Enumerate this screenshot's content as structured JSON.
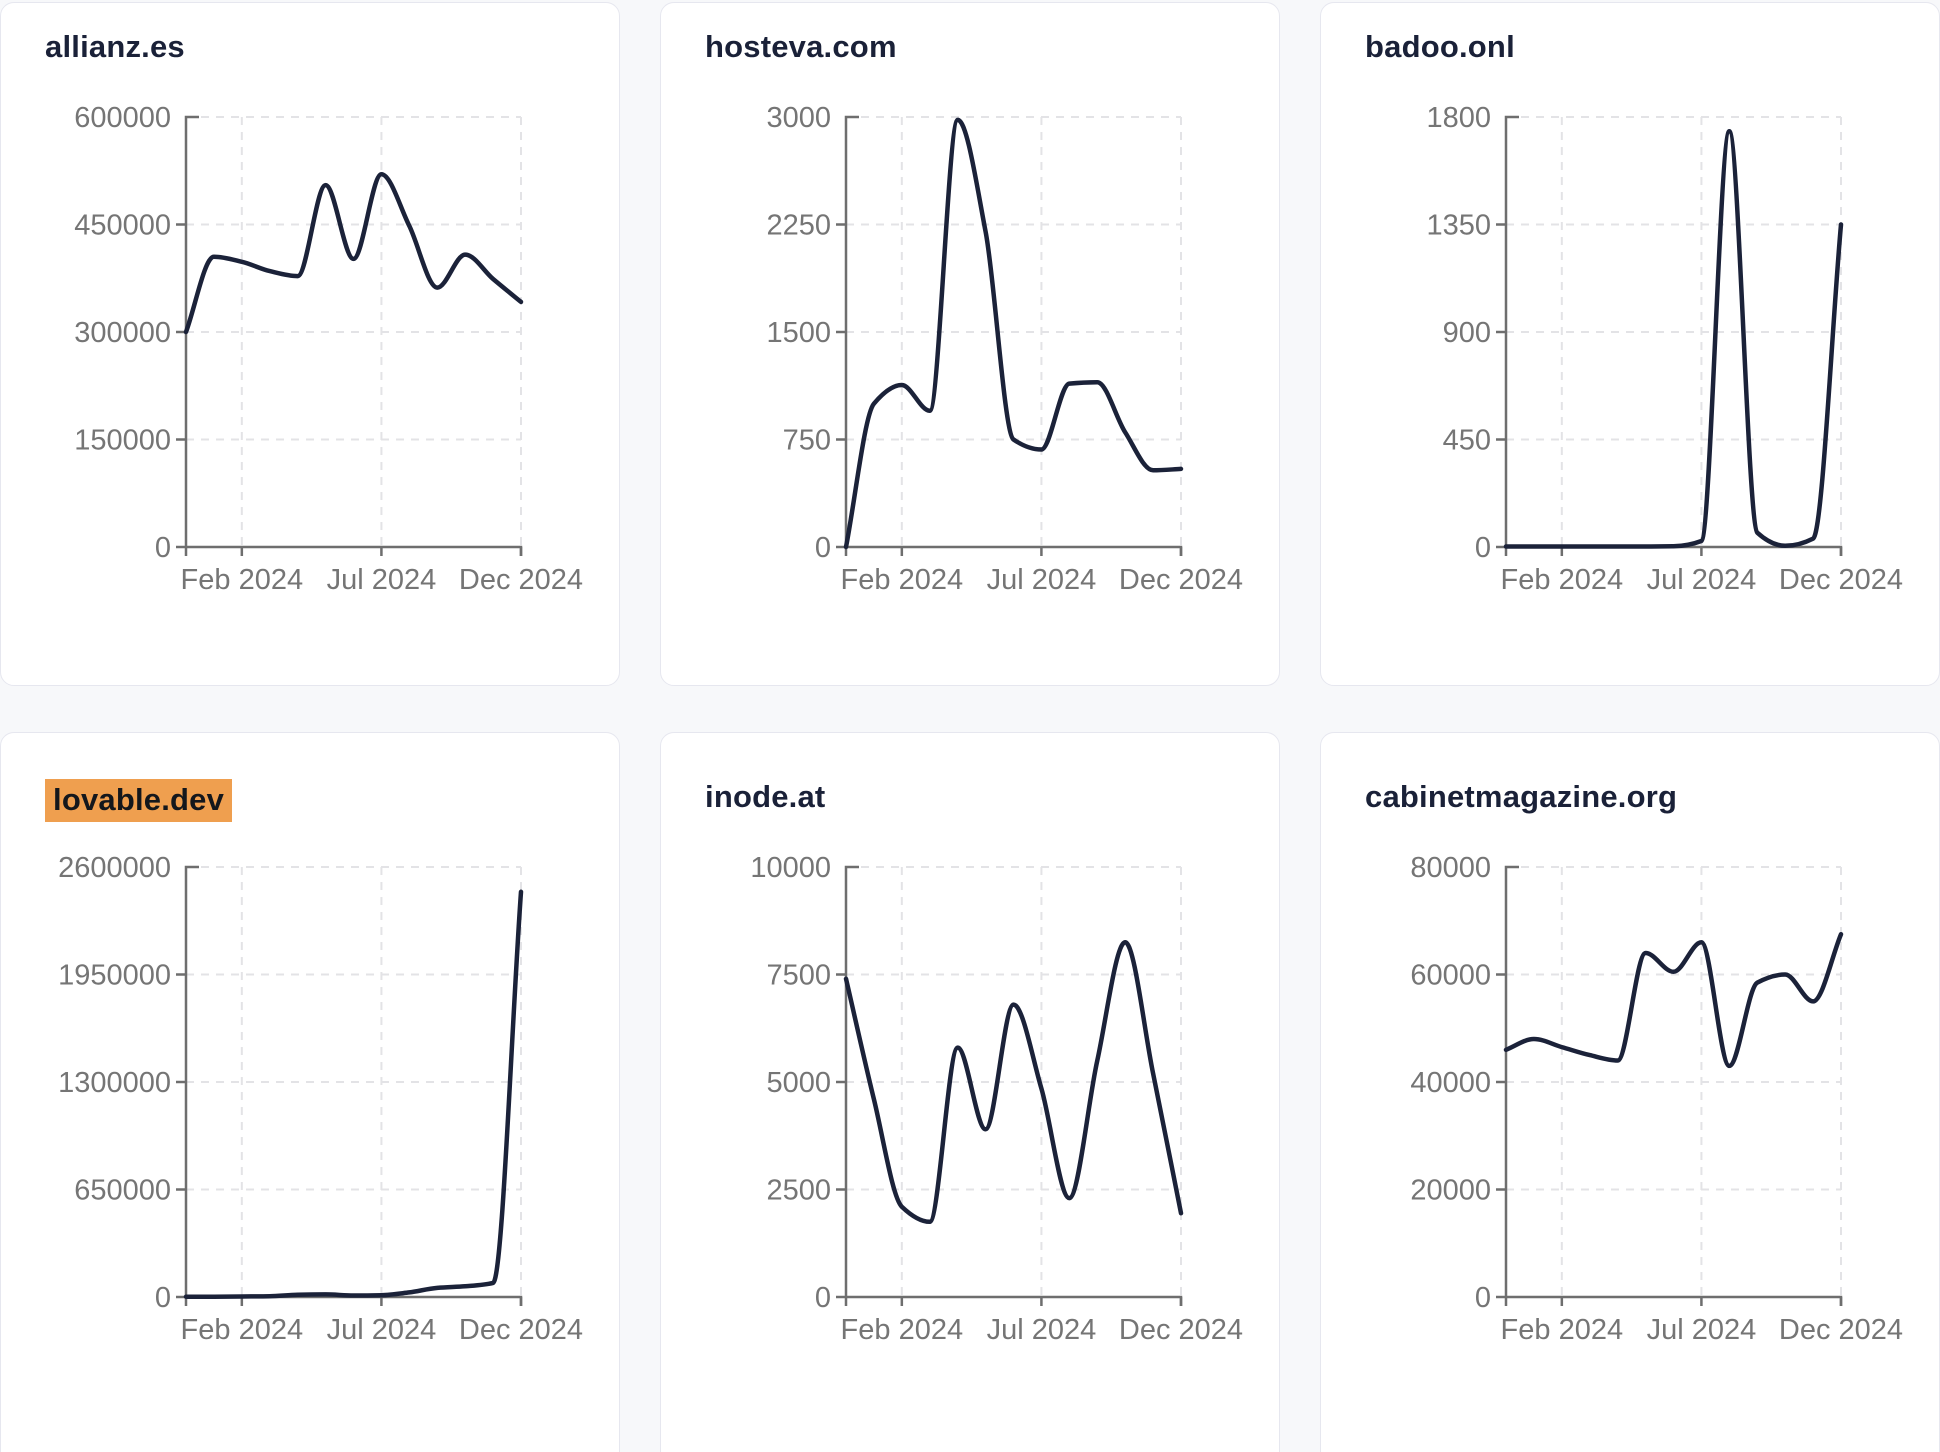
{
  "colors": {
    "page_bg": "#f7f8fa",
    "card_bg": "#ffffff",
    "card_border": "#e6e7ef",
    "title_text": "#1a2138",
    "line": "#1b2239",
    "axis": "#6e6e6e",
    "tick_text": "#757575",
    "grid": "#e3e3e6",
    "highlight_bg": "#ef9f4f",
    "highlight_text": "#14171c"
  },
  "x_axis": {
    "tick_labels": [
      "Feb 2024",
      "Jul 2024",
      "Dec 2024"
    ],
    "tick_positions": [
      2,
      7,
      12
    ],
    "points_span": 12
  },
  "chart_data": [
    {
      "type": "line",
      "title": "allianz.es",
      "title_highlight": false,
      "x_months": [
        "Dec 2023",
        "Jan 2024",
        "Feb 2024",
        "Mar 2024",
        "Apr 2024",
        "May 2024",
        "Jun 2024",
        "Jul 2024",
        "Aug 2024",
        "Sep 2024",
        "Oct 2024",
        "Nov 2024",
        "Dec 2024"
      ],
      "values": [
        300000,
        405000,
        398000,
        385000,
        378000,
        505000,
        402000,
        520000,
        448000,
        362000,
        408000,
        374000,
        342000
      ],
      "y_ticks": [
        0,
        150000,
        300000,
        450000,
        600000
      ],
      "ylim": [
        0,
        600000
      ],
      "x_tick_labels": [
        "Feb 2024",
        "Jul 2024",
        "Dec 2024"
      ],
      "grid": true
    },
    {
      "type": "line",
      "title": "hosteva.com",
      "title_highlight": false,
      "x_months": [
        "Dec 2023",
        "Jan 2024",
        "Feb 2024",
        "Mar 2024",
        "Apr 2024",
        "May 2024",
        "Jun 2024",
        "Jul 2024",
        "Aug 2024",
        "Sep 2024",
        "Oct 2024",
        "Nov 2024",
        "Dec 2024"
      ],
      "values": [
        0,
        1000,
        1130,
        950,
        2980,
        2200,
        750,
        680,
        1140,
        1150,
        800,
        535,
        545
      ],
      "y_ticks": [
        0,
        750,
        1500,
        2250,
        3000
      ],
      "ylim": [
        0,
        3000
      ],
      "x_tick_labels": [
        "Feb 2024",
        "Jul 2024",
        "Dec 2024"
      ],
      "grid": true
    },
    {
      "type": "line",
      "title": "badoo.onl",
      "title_highlight": false,
      "x_months": [
        "Dec 2023",
        "Jan 2024",
        "Feb 2024",
        "Mar 2024",
        "Apr 2024",
        "May 2024",
        "Jun 2024",
        "Jul 2024",
        "Aug 2024",
        "Sep 2024",
        "Oct 2024",
        "Nov 2024",
        "Dec 2024"
      ],
      "values": [
        2,
        2,
        2,
        2,
        2,
        2,
        3,
        25,
        1740,
        60,
        5,
        35,
        1350
      ],
      "y_ticks": [
        0,
        450,
        900,
        1350,
        1800
      ],
      "ylim": [
        0,
        1800
      ],
      "x_tick_labels": [
        "Feb 2024",
        "Jul 2024",
        "Dec 2024"
      ],
      "grid": true
    },
    {
      "type": "line",
      "title": "lovable.dev",
      "title_highlight": true,
      "x_months": [
        "Dec 2023",
        "Jan 2024",
        "Feb 2024",
        "Mar 2024",
        "Apr 2024",
        "May 2024",
        "Jun 2024",
        "Jul 2024",
        "Aug 2024",
        "Sep 2024",
        "Oct 2024",
        "Nov 2024",
        "Dec 2024"
      ],
      "values": [
        2000,
        2000,
        3000,
        5000,
        14000,
        16000,
        9000,
        11000,
        28000,
        55000,
        65000,
        85000,
        2450000
      ],
      "y_ticks": [
        0,
        650000,
        1300000,
        1950000,
        2600000
      ],
      "ylim": [
        0,
        2600000
      ],
      "x_tick_labels": [
        "Feb 2024",
        "Jul 2024",
        "Dec 2024"
      ],
      "grid": true
    },
    {
      "type": "line",
      "title": "inode.at",
      "title_highlight": false,
      "x_months": [
        "Dec 2023",
        "Jan 2024",
        "Feb 2024",
        "Mar 2024",
        "Apr 2024",
        "May 2024",
        "Jun 2024",
        "Jul 2024",
        "Aug 2024",
        "Sep 2024",
        "Oct 2024",
        "Nov 2024",
        "Dec 2024"
      ],
      "values": [
        7400,
        4600,
        2100,
        1750,
        5800,
        3900,
        6800,
        4850,
        2300,
        5500,
        8250,
        5200,
        1950
      ],
      "y_ticks": [
        0,
        2500,
        5000,
        7500,
        10000
      ],
      "ylim": [
        0,
        10000
      ],
      "x_tick_labels": [
        "Feb 2024",
        "Jul 2024",
        "Dec 2024"
      ],
      "grid": true
    },
    {
      "type": "line",
      "title": "cabinetmagazine.org",
      "title_highlight": false,
      "x_months": [
        "Dec 2023",
        "Jan 2024",
        "Feb 2024",
        "Mar 2024",
        "Apr 2024",
        "May 2024",
        "Jun 2024",
        "Jul 2024",
        "Aug 2024",
        "Sep 2024",
        "Oct 2024",
        "Nov 2024",
        "Dec 2024"
      ],
      "values": [
        46000,
        48000,
        46500,
        45000,
        44000,
        64000,
        60500,
        66000,
        43000,
        58500,
        60000,
        55000,
        67500
      ],
      "y_ticks": [
        0,
        20000,
        40000,
        60000,
        80000
      ],
      "ylim": [
        0,
        80000
      ],
      "x_tick_labels": [
        "Feb 2024",
        "Jul 2024",
        "Dec 2024"
      ],
      "grid": true
    }
  ]
}
